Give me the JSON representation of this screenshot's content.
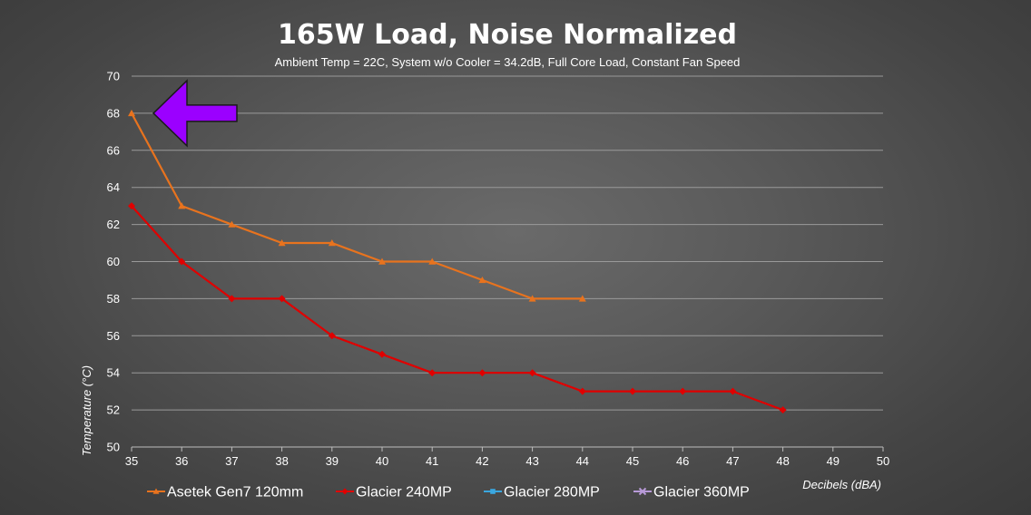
{
  "chart_data": {
    "type": "line",
    "title": "165W Load, Noise Normalized",
    "subtitle": "Ambient Temp = 22C, System w/o Cooler = 34.2dB, Full Core Load, Constant Fan Speed",
    "xlabel": "Decibels (dBA)",
    "ylabel": "Temperature  (°C)",
    "xlim": [
      35,
      50
    ],
    "ylim": [
      50,
      70
    ],
    "x_ticks": [
      "35",
      "36",
      "37",
      "38",
      "39",
      "40",
      "41",
      "42",
      "43",
      "44",
      "45",
      "46",
      "47",
      "48",
      "49",
      "50"
    ],
    "y_ticks": [
      "50",
      "52",
      "54",
      "56",
      "58",
      "60",
      "62",
      "64",
      "66",
      "68",
      "70"
    ],
    "grid": "horizontal",
    "legend_position": "bottom",
    "series": [
      {
        "name": "Asetek Gen7 120mm",
        "color": "#e8731e",
        "marker": "triangle",
        "points": [
          [
            35,
            68
          ],
          [
            36,
            63
          ],
          [
            37,
            62
          ],
          [
            38,
            61
          ],
          [
            39,
            61
          ],
          [
            40,
            60
          ],
          [
            41,
            60
          ],
          [
            42,
            59
          ],
          [
            43,
            58
          ],
          [
            44,
            58
          ]
        ]
      },
      {
        "name": "Glacier 240MP",
        "color": "#e00000",
        "marker": "diamond",
        "points": [
          [
            35,
            63
          ],
          [
            36,
            60
          ],
          [
            37,
            58
          ],
          [
            38,
            58
          ],
          [
            39,
            56
          ],
          [
            40,
            55
          ],
          [
            41,
            54
          ],
          [
            42,
            54
          ],
          [
            43,
            54
          ],
          [
            44,
            53
          ],
          [
            45,
            53
          ],
          [
            46,
            53
          ],
          [
            47,
            53
          ],
          [
            48,
            52
          ]
        ]
      },
      {
        "name": "Glacier 280MP",
        "color": "#3aa7e0",
        "marker": "square",
        "points": []
      },
      {
        "name": "Glacier 360MP",
        "color": "#b89ad8",
        "marker": "x",
        "points": []
      }
    ],
    "annotation": {
      "type": "arrow",
      "direction": "left",
      "points_to": [
        35,
        68
      ],
      "color": "#9b00ff"
    }
  }
}
